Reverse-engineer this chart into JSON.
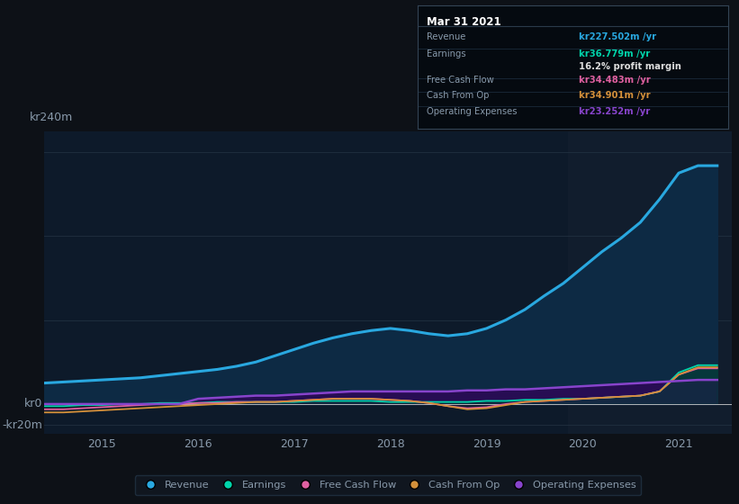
{
  "bg_color": "#0d1117",
  "plot_bg_color": "#0d1a2a",
  "grid_color": "#1e2d3d",
  "text_color": "#8899aa",
  "white_color": "#ffffff",
  "y_label_top": "kr240m",
  "y_label_zero": "kr0",
  "y_label_neg": "-kr20m",
  "y_top": 240,
  "y_zero": 0,
  "y_neg": -20,
  "ylim": [
    -28,
    260
  ],
  "xlim_start": 2014.4,
  "xlim_end": 2021.55,
  "xticks": [
    2015,
    2016,
    2017,
    2018,
    2019,
    2020,
    2021
  ],
  "revenue_color": "#29a8e0",
  "earnings_color": "#00d4aa",
  "fcf_color": "#e060a0",
  "cashfromop_color": "#d4903a",
  "opex_color": "#8844cc",
  "revenue_fill_color": "#0d2a44",
  "opex_fill_color": "#2a0a55",
  "info_box_bg": "#050a10",
  "info_box_border": "#334455",
  "info_title": "Mar 31 2021",
  "info_revenue_label": "Revenue",
  "info_revenue_value": "kr227.502m /yr",
  "info_earnings_label": "Earnings",
  "info_earnings_value": "kr36.779m /yr",
  "info_margin": "16.2% profit margin",
  "info_fcf_label": "Free Cash Flow",
  "info_fcf_value": "kr34.483m /yr",
  "info_cashfromop_label": "Cash From Op",
  "info_cashfromop_value": "kr34.901m /yr",
  "info_opex_label": "Operating Expenses",
  "info_opex_value": "kr23.252m /yr",
  "legend_items": [
    {
      "label": "Revenue",
      "color": "#29a8e0"
    },
    {
      "label": "Earnings",
      "color": "#00d4aa"
    },
    {
      "label": "Free Cash Flow",
      "color": "#e060a0"
    },
    {
      "label": "Cash From Op",
      "color": "#d4903a"
    },
    {
      "label": "Operating Expenses",
      "color": "#8844cc"
    }
  ],
  "x_years": [
    2014.4,
    2014.6,
    2014.8,
    2015.0,
    2015.2,
    2015.4,
    2015.6,
    2015.8,
    2016.0,
    2016.2,
    2016.4,
    2016.6,
    2016.8,
    2017.0,
    2017.2,
    2017.4,
    2017.6,
    2017.8,
    2018.0,
    2018.2,
    2018.4,
    2018.6,
    2018.8,
    2019.0,
    2019.2,
    2019.4,
    2019.6,
    2019.8,
    2020.0,
    2020.2,
    2020.4,
    2020.6,
    2020.8,
    2021.0,
    2021.2,
    2021.4
  ],
  "revenue": [
    20,
    21,
    22,
    23,
    24,
    25,
    27,
    29,
    31,
    33,
    36,
    40,
    46,
    52,
    58,
    63,
    67,
    70,
    72,
    70,
    67,
    65,
    67,
    72,
    80,
    90,
    103,
    115,
    130,
    145,
    158,
    173,
    195,
    220,
    227,
    227
  ],
  "earnings": [
    -2,
    -2,
    -1,
    -1,
    0,
    0,
    1,
    1,
    1,
    2,
    2,
    2,
    2,
    2,
    3,
    3,
    3,
    3,
    2,
    2,
    2,
    2,
    2,
    3,
    3,
    4,
    4,
    5,
    5,
    6,
    7,
    8,
    12,
    30,
    37,
    37
  ],
  "fcf": [
    -5,
    -5,
    -4,
    -3,
    -2,
    -1,
    0,
    0,
    1,
    1,
    2,
    2,
    2,
    3,
    4,
    5,
    5,
    5,
    4,
    3,
    1,
    -2,
    -4,
    -3,
    0,
    2,
    3,
    4,
    5,
    6,
    7,
    8,
    12,
    28,
    34,
    34
  ],
  "cashfromop": [
    -8,
    -8,
    -7,
    -6,
    -5,
    -4,
    -3,
    -2,
    -1,
    0,
    1,
    2,
    2,
    3,
    4,
    5,
    5,
    5,
    4,
    3,
    1,
    -2,
    -5,
    -4,
    -1,
    2,
    3,
    4,
    5,
    6,
    7,
    8,
    12,
    28,
    35,
    35
  ],
  "opex": [
    0,
    0,
    0,
    0,
    0,
    0,
    0,
    0,
    5,
    6,
    7,
    8,
    8,
    9,
    10,
    11,
    12,
    12,
    12,
    12,
    12,
    12,
    13,
    13,
    14,
    14,
    15,
    16,
    17,
    18,
    19,
    20,
    21,
    22,
    23,
    23
  ],
  "highlight_x_start": 2019.85,
  "highlight_x_end": 2021.55
}
